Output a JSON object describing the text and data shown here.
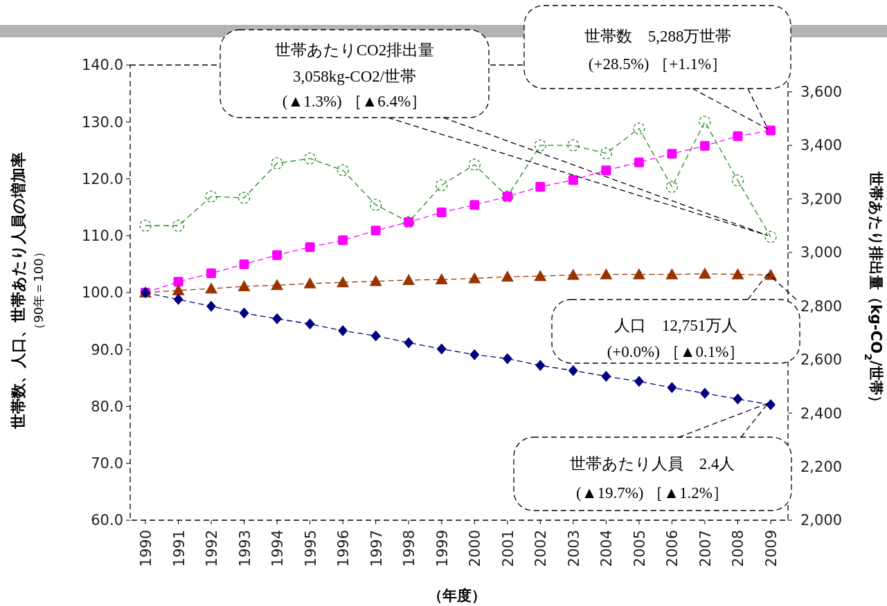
{
  "chart_data": {
    "type": "line",
    "ylabel": "世帯数、人口、世帯あたり人員の増加率（90年＝100）",
    "y2label": "世帯あたり排出量（kg-CO$_{2}$/世帯）",
    "xlabel": "（年度）",
    "categories": [
      "1990",
      "1991",
      "1992",
      "1993",
      "1994",
      "1995",
      "1996",
      "1997",
      "1998",
      "1999",
      "2000",
      "2001",
      "2002",
      "2003",
      "2004",
      "2005",
      "2006",
      "2007",
      "2008",
      "2009"
    ],
    "ylim": [
      60,
      140
    ],
    "yticks": [
      {
        "value": 60,
        "label": "60.0"
      },
      {
        "value": 70,
        "label": "70.0"
      },
      {
        "value": 80,
        "label": "80.0"
      },
      {
        "value": 90,
        "label": "90.0"
      },
      {
        "value": 100,
        "label": "100.0"
      },
      {
        "value": 110,
        "label": "110.0"
      },
      {
        "value": 120,
        "label": "120.0"
      },
      {
        "value": 130,
        "label": "130.0"
      },
      {
        "value": 140,
        "label": "140.0"
      }
    ],
    "y2lim": [
      2000,
      3700
    ],
    "y2ticks": [
      {
        "value": 2000,
        "label": "2,000"
      },
      {
        "value": 2200,
        "label": "2,200"
      },
      {
        "value": 2400,
        "label": "2,400"
      },
      {
        "value": 2600,
        "label": "2,600"
      },
      {
        "value": 2800,
        "label": "2,800"
      },
      {
        "value": 3000,
        "label": "3,000"
      },
      {
        "value": 3200,
        "label": "3,200"
      },
      {
        "value": 3400,
        "label": "3,400"
      },
      {
        "value": 3600,
        "label": "3,600"
      }
    ],
    "line_style": "dashed",
    "grid": false,
    "series": [
      {
        "color": "#228b22",
        "axis": "y2",
        "marker": "circle",
        "values": [
          3100,
          3100,
          3209,
          3204,
          3333,
          3351,
          3307,
          3178,
          3114,
          3251,
          3328,
          3209,
          3400,
          3400,
          3370,
          3463,
          3245,
          3488,
          3269,
          3058
        ]
      },
      {
        "color": "#ff00ff",
        "marker": "square",
        "values": [
          100.0,
          101.9,
          103.4,
          105.0,
          106.6,
          108.0,
          109.2,
          110.9,
          112.4,
          114.1,
          115.4,
          116.9,
          118.6,
          119.8,
          121.5,
          122.9,
          124.4,
          125.8,
          127.5,
          128.5
        ]
      },
      {
        "color": "#993300",
        "marker": "triangle",
        "values": [
          100.0,
          100.4,
          100.7,
          101.1,
          101.3,
          101.6,
          101.8,
          102.0,
          102.2,
          102.3,
          102.5,
          102.8,
          102.9,
          103.1,
          103.2,
          103.2,
          103.2,
          103.3,
          103.2,
          103.1
        ]
      },
      {
        "color": "#000080",
        "marker": "diamond",
        "values": [
          100.0,
          98.8,
          97.6,
          96.4,
          95.4,
          94.5,
          93.3,
          92.4,
          91.2,
          90.1,
          89.1,
          88.4,
          87.2,
          86.3,
          85.3,
          84.4,
          83.3,
          82.3,
          81.3,
          80.3
        ]
      }
    ],
    "annotations": [
      "世帯あたりCO2排出量\n3,058kg-CO2/世帯\n(▲1.3%) ［▲6.4%］",
      {
        "text": "世帯数　5,288万世帯\n(+28.5%) ［+1.1%］",
        "x": "2009",
        "y": 128.5
      },
      {
        "text": "人口　12,751万人\n(+0.0%) ［▲0.1%］",
        "x": "2009",
        "y": 103.1
      },
      {
        "text": "世帯あたり人員　2.4人\n(▲19.7%) ［▲1.2%］",
        "x": "2009",
        "y": 80.3
      }
    ]
  }
}
